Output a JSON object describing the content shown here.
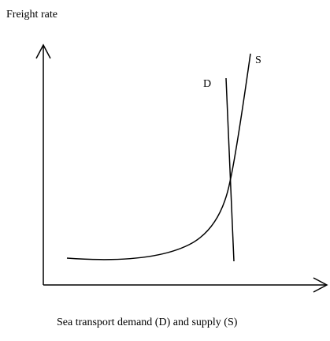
{
  "y_axis_label": "Freight rate",
  "x_axis_label": "Sea transport demand (D) and supply (S)",
  "curves": [
    {
      "label": "D"
    },
    {
      "label": "S"
    }
  ]
}
